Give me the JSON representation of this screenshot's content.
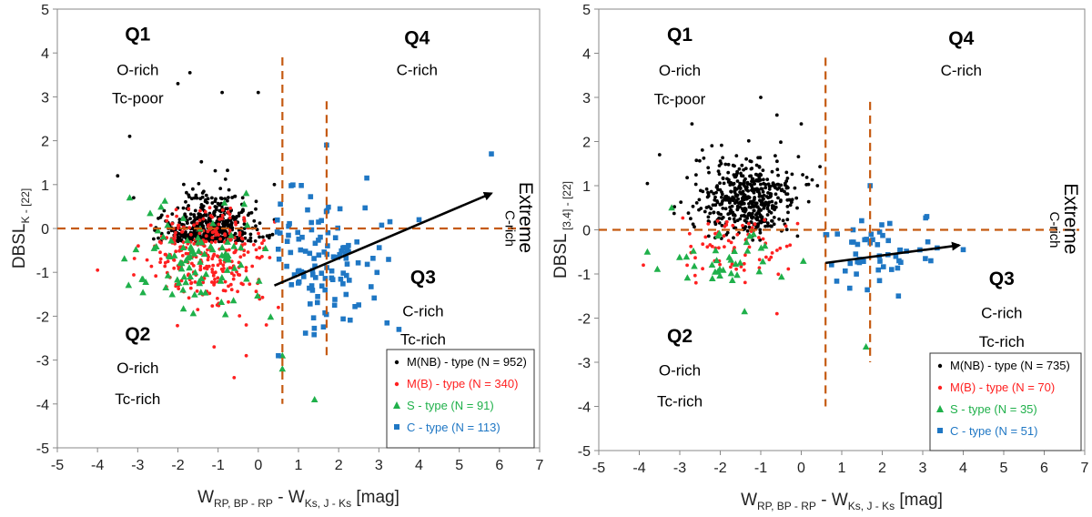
{
  "colors": {
    "mnb": "#000000",
    "mb": "#ff2020",
    "s": "#1fb04a",
    "c": "#1f77c4",
    "guide": "#c55a11",
    "arrow": "#000000"
  },
  "chart_data": [
    {
      "type": "scatter",
      "xlabel": {
        "main": "W",
        "sub1": "RP, BP - RP",
        "mid": " - W",
        "sub2": "Ks, J - Ks",
        "tail": " [mag]"
      },
      "ylabel": {
        "main": "DBSL",
        "sub": "K - [22]"
      },
      "xlim": [
        -5,
        7
      ],
      "ylim": [
        -5,
        5
      ],
      "xticks": [
        "-5",
        "-4",
        "-3",
        "-2",
        "-1",
        "0",
        "1",
        "2",
        "3",
        "4",
        "5",
        "6",
        "7"
      ],
      "yticks": [
        "-5",
        "-4",
        "-3",
        "-2",
        "-1",
        "0",
        "1",
        "2",
        "3",
        "4",
        "5"
      ],
      "guides": {
        "h": 0,
        "v1": 0.6,
        "v1_range": [
          -4,
          3.9
        ],
        "v2": 1.7,
        "v2_range": [
          -3,
          2.9
        ]
      },
      "arrow": {
        "from": [
          0.4,
          -1.3
        ],
        "to": [
          5.8,
          0.8
        ]
      },
      "quadrants": {
        "q1": {
          "head": "Q1",
          "l1": "O-rich",
          "l2": "Tc-poor"
        },
        "q2": {
          "head": "Q2",
          "l1": "O-rich",
          "l2": "Tc-rich"
        },
        "q3": {
          "head": "Q3",
          "l1": "C-rich",
          "l2": "Tc-rich"
        },
        "q4": {
          "head": "Q4",
          "l1": "C-rich"
        },
        "extreme": {
          "big": "Extreme",
          "small": "C-rich"
        }
      },
      "legend": [
        {
          "key": "mnb",
          "marker": "dot",
          "text": "M(NB) - type (N = 952)"
        },
        {
          "key": "mb",
          "marker": "dot",
          "text": "M(B) - type (N = 340)"
        },
        {
          "key": "s",
          "marker": "triangle",
          "text": "S - type (N = 91)"
        },
        {
          "key": "c",
          "marker": "square",
          "text": "C - type (N = 113)"
        }
      ],
      "series": [
        {
          "key": "mnb",
          "name": "M(NB) - type",
          "n": 952,
          "cx": [
            -1.2,
            -1.2
          ],
          "sd": [
            0.55,
            0.75
          ],
          "cap": 500,
          "xr": [
            -3.5,
            0.5
          ],
          "yr": [
            -0.3,
            3.6
          ],
          "extra": [
            [
              -1.7,
              3.55
            ],
            [
              -2.0,
              3.3
            ],
            [
              -3.2,
              2.1
            ],
            [
              0.0,
              3.1
            ],
            [
              -0.9,
              3.1
            ],
            [
              -3.5,
              1.2
            ],
            [
              0.4,
              1.0
            ],
            [
              0.4,
              0.2
            ],
            [
              -3.1,
              0.7
            ]
          ]
        },
        {
          "key": "mb",
          "name": "M(B) - type",
          "n": 340,
          "cx": [
            -1.3,
            -0.55
          ],
          "sd": [
            0.7,
            0.55
          ],
          "cap": 300,
          "xr": [
            -4,
            0.6
          ],
          "yr": [
            -3.4,
            0.5
          ],
          "extra": [
            [
              -4.0,
              -0.95
            ],
            [
              -0.6,
              -3.4
            ],
            [
              -1.1,
              -2.7
            ],
            [
              -0.3,
              -2.9
            ],
            [
              0.2,
              -2.2
            ],
            [
              0.5,
              -1.8
            ],
            [
              -0.3,
              -2.2
            ]
          ]
        },
        {
          "key": "s",
          "name": "S - type",
          "n": 91,
          "cx": [
            -1.6,
            -0.8
          ],
          "sd": [
            0.9,
            0.6
          ],
          "cap": 91,
          "xr": [
            -3.8,
            0.5
          ],
          "yr": [
            -2.2,
            1.0
          ],
          "extra": [
            [
              1.4,
              -3.9
            ],
            [
              0.6,
              -3.2
            ],
            [
              0.6,
              -2.9
            ],
            [
              -3.2,
              0.7
            ],
            [
              -0.3,
              0.8
            ]
          ]
        },
        {
          "key": "c",
          "name": "C - type",
          "n": 113,
          "cx": [
            1.6,
            -0.7
          ],
          "sd": [
            0.75,
            0.75
          ],
          "cap": 113,
          "xr": [
            0.4,
            3.9
          ],
          "yr": [
            -2.5,
            1.2
          ],
          "extra": [
            [
              5.8,
              1.7
            ],
            [
              1.7,
              1.9
            ],
            [
              0.5,
              -2.9
            ],
            [
              3.5,
              -2.3
            ],
            [
              2.7,
              1.15
            ],
            [
              4.0,
              0.2
            ]
          ]
        }
      ]
    },
    {
      "type": "scatter",
      "xlabel": {
        "main": "W",
        "sub1": "RP, BP - RP",
        "mid": " - W",
        "sub2": "Ks, J - Ks",
        "tail": " [mag]"
      },
      "ylabel": {
        "main": "DBSL",
        "sub": " [3.4] - [22]"
      },
      "xlim": [
        -5,
        7
      ],
      "ylim": [
        -5,
        5
      ],
      "xticks": [
        "-5",
        "-4",
        "-3",
        "-2",
        "-1",
        "0",
        "1",
        "2",
        "3",
        "4",
        "5",
        "6",
        "7"
      ],
      "yticks": [
        "-5",
        "-4",
        "-3",
        "-2",
        "-1",
        "0",
        "1",
        "2",
        "3",
        "4",
        "5"
      ],
      "guides": {
        "h": 0,
        "v1": 0.6,
        "v1_range": [
          -4,
          3.9
        ],
        "v2": 1.7,
        "v2_range": [
          -3,
          2.9
        ]
      },
      "arrow": {
        "from": [
          0.6,
          -0.75
        ],
        "to": [
          3.9,
          -0.35
        ]
      },
      "quadrants": {
        "q1": {
          "head": "Q1",
          "l1": "O-rich",
          "l2": "Tc-poor"
        },
        "q2": {
          "head": "Q2",
          "l1": "O-rich",
          "l2": "Tc-rich"
        },
        "q3": {
          "head": "Q3",
          "l1": "C-rich",
          "l2": "Tc-rich"
        },
        "q4": {
          "head": "Q4",
          "l1": "C-rich"
        },
        "extreme": {
          "big": "Extreme",
          "small": "C-rich"
        }
      },
      "legend": [
        {
          "key": "mnb",
          "marker": "dot",
          "text": "M(NB) - type (N = 735)"
        },
        {
          "key": "mb",
          "marker": "dot",
          "text": "M(B) - type (N = 70)"
        },
        {
          "key": "s",
          "marker": "triangle",
          "text": "S - type (N = 35)"
        },
        {
          "key": "c",
          "marker": "square",
          "text": "C - type (N = 51)"
        }
      ],
      "series": [
        {
          "key": "mnb",
          "name": "M(NB) - type",
          "n": 735,
          "cx": [
            -1.3,
            0.7
          ],
          "sd": [
            0.6,
            0.45
          ],
          "cap": 480,
          "xr": [
            -3.4,
            0.6
          ],
          "yr": [
            -0.3,
            3.0
          ],
          "extra": [
            [
              -1.0,
              3.0
            ],
            [
              -2.7,
              2.4
            ],
            [
              -3.5,
              1.7
            ],
            [
              -3.8,
              1.05
            ],
            [
              0.4,
              1.0
            ],
            [
              0.0,
              2.4
            ],
            [
              -0.6,
              2.6
            ]
          ]
        },
        {
          "key": "mb",
          "name": "M(B) - type",
          "n": 70,
          "cx": [
            -1.5,
            -0.35
          ],
          "sd": [
            0.6,
            0.4
          ],
          "cap": 70,
          "xr": [
            -3.3,
            0.4
          ],
          "yr": [
            -1.3,
            0.5
          ],
          "extra": [
            [
              -3.9,
              -0.8
            ],
            [
              -0.6,
              -1.9
            ],
            [
              -2.6,
              -1.2
            ]
          ]
        },
        {
          "key": "s",
          "name": "S - type",
          "n": 35,
          "cx": [
            -1.7,
            -0.7
          ],
          "sd": [
            0.8,
            0.35
          ],
          "cap": 35,
          "xr": [
            -3.8,
            0.6
          ],
          "yr": [
            -1.3,
            0.7
          ],
          "extra": [
            [
              -1.4,
              -1.85
            ],
            [
              1.6,
              -2.65
            ],
            [
              -3.8,
              -0.5
            ],
            [
              -3.2,
              0.5
            ]
          ]
        },
        {
          "key": "c",
          "name": "C - type",
          "n": 51,
          "cx": [
            1.7,
            -0.5
          ],
          "sd": [
            0.8,
            0.5
          ],
          "cap": 51,
          "xr": [
            0.6,
            3.4
          ],
          "yr": [
            -1.5,
            0.4
          ],
          "extra": [
            [
              3.1,
              0.3
            ],
            [
              4.0,
              -0.45
            ],
            [
              1.7,
              1.0
            ],
            [
              2.4,
              -1.5
            ],
            [
              3.2,
              -0.7
            ]
          ]
        }
      ]
    }
  ]
}
